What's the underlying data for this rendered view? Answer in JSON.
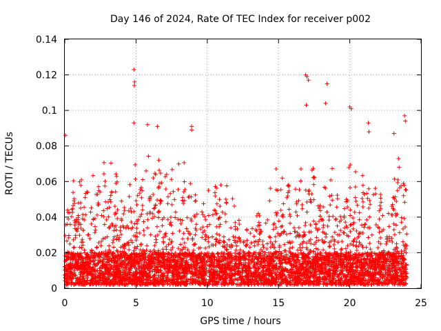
{
  "chart_data": {
    "type": "scatter",
    "title": "Day 146 of 2024, Rate Of TEC Index for receiver p002",
    "xlabel": "GPS time / hours",
    "ylabel": "ROTI / TECUs",
    "xlim": [
      0,
      25
    ],
    "ylim": [
      0,
      0.14
    ],
    "xticks": [
      0,
      5,
      10,
      15,
      20,
      25
    ],
    "yticks": [
      0,
      0.02,
      0.04,
      0.06,
      0.08,
      0.1,
      0.12,
      0.14
    ],
    "xtick_labels": [
      "0",
      "5",
      "10",
      "15",
      "20",
      "25"
    ],
    "ytick_labels": [
      "0",
      "0.02",
      "0.04",
      "0.06",
      "0.08",
      "0.1",
      "0.12",
      "0.14"
    ],
    "grid": true,
    "marker": "+",
    "color": "#ff0000",
    "data_extent_hours": [
      0,
      24
    ],
    "notable_points": [
      {
        "x": 0.05,
        "y": 0.086
      },
      {
        "x": 4.85,
        "y": 0.123
      },
      {
        "x": 4.9,
        "y": 0.116
      },
      {
        "x": 4.88,
        "y": 0.114
      },
      {
        "x": 4.85,
        "y": 0.093
      },
      {
        "x": 5.8,
        "y": 0.092
      },
      {
        "x": 6.5,
        "y": 0.091
      },
      {
        "x": 8.9,
        "y": 0.091
      },
      {
        "x": 8.9,
        "y": 0.089
      },
      {
        "x": 16.9,
        "y": 0.12
      },
      {
        "x": 17.0,
        "y": 0.119
      },
      {
        "x": 17.1,
        "y": 0.117
      },
      {
        "x": 18.4,
        "y": 0.115
      },
      {
        "x": 18.3,
        "y": 0.104
      },
      {
        "x": 16.95,
        "y": 0.103
      },
      {
        "x": 20.0,
        "y": 0.102
      },
      {
        "x": 20.1,
        "y": 0.101
      },
      {
        "x": 21.3,
        "y": 0.093
      },
      {
        "x": 21.35,
        "y": 0.088
      },
      {
        "x": 23.85,
        "y": 0.097
      },
      {
        "x": 23.9,
        "y": 0.094
      },
      {
        "x": 23.1,
        "y": 0.087
      }
    ],
    "activity_envelope": [
      {
        "x": 0.0,
        "y": 0.045
      },
      {
        "x": 0.5,
        "y": 0.06
      },
      {
        "x": 1.0,
        "y": 0.07
      },
      {
        "x": 1.5,
        "y": 0.06
      },
      {
        "x": 2.0,
        "y": 0.072
      },
      {
        "x": 2.5,
        "y": 0.065
      },
      {
        "x": 3.0,
        "y": 0.082
      },
      {
        "x": 3.5,
        "y": 0.07
      },
      {
        "x": 4.0,
        "y": 0.06
      },
      {
        "x": 4.5,
        "y": 0.06
      },
      {
        "x": 5.0,
        "y": 0.075
      },
      {
        "x": 5.5,
        "y": 0.07
      },
      {
        "x": 6.0,
        "y": 0.082
      },
      {
        "x": 6.5,
        "y": 0.08
      },
      {
        "x": 7.0,
        "y": 0.065
      },
      {
        "x": 7.5,
        "y": 0.072
      },
      {
        "x": 8.0,
        "y": 0.075
      },
      {
        "x": 8.5,
        "y": 0.07
      },
      {
        "x": 9.0,
        "y": 0.065
      },
      {
        "x": 9.5,
        "y": 0.055
      },
      {
        "x": 10.0,
        "y": 0.06
      },
      {
        "x": 10.5,
        "y": 0.062
      },
      {
        "x": 11.0,
        "y": 0.065
      },
      {
        "x": 11.5,
        "y": 0.06
      },
      {
        "x": 12.0,
        "y": 0.055
      },
      {
        "x": 12.5,
        "y": 0.035
      },
      {
        "x": 13.0,
        "y": 0.035
      },
      {
        "x": 13.5,
        "y": 0.045
      },
      {
        "x": 14.0,
        "y": 0.06
      },
      {
        "x": 14.5,
        "y": 0.07
      },
      {
        "x": 15.0,
        "y": 0.07
      },
      {
        "x": 15.5,
        "y": 0.062
      },
      {
        "x": 16.0,
        "y": 0.06
      },
      {
        "x": 16.5,
        "y": 0.065
      },
      {
        "x": 17.0,
        "y": 0.08
      },
      {
        "x": 17.5,
        "y": 0.07
      },
      {
        "x": 18.0,
        "y": 0.06
      },
      {
        "x": 18.5,
        "y": 0.07
      },
      {
        "x": 19.0,
        "y": 0.07
      },
      {
        "x": 19.5,
        "y": 0.065
      },
      {
        "x": 20.0,
        "y": 0.075
      },
      {
        "x": 20.5,
        "y": 0.065
      },
      {
        "x": 21.0,
        "y": 0.07
      },
      {
        "x": 21.5,
        "y": 0.065
      },
      {
        "x": 22.0,
        "y": 0.055
      },
      {
        "x": 22.5,
        "y": 0.05
      },
      {
        "x": 23.0,
        "y": 0.07
      },
      {
        "x": 23.5,
        "y": 0.075
      },
      {
        "x": 24.0,
        "y": 0.065
      }
    ],
    "baseline_range": [
      0.002,
      0.02
    ]
  }
}
